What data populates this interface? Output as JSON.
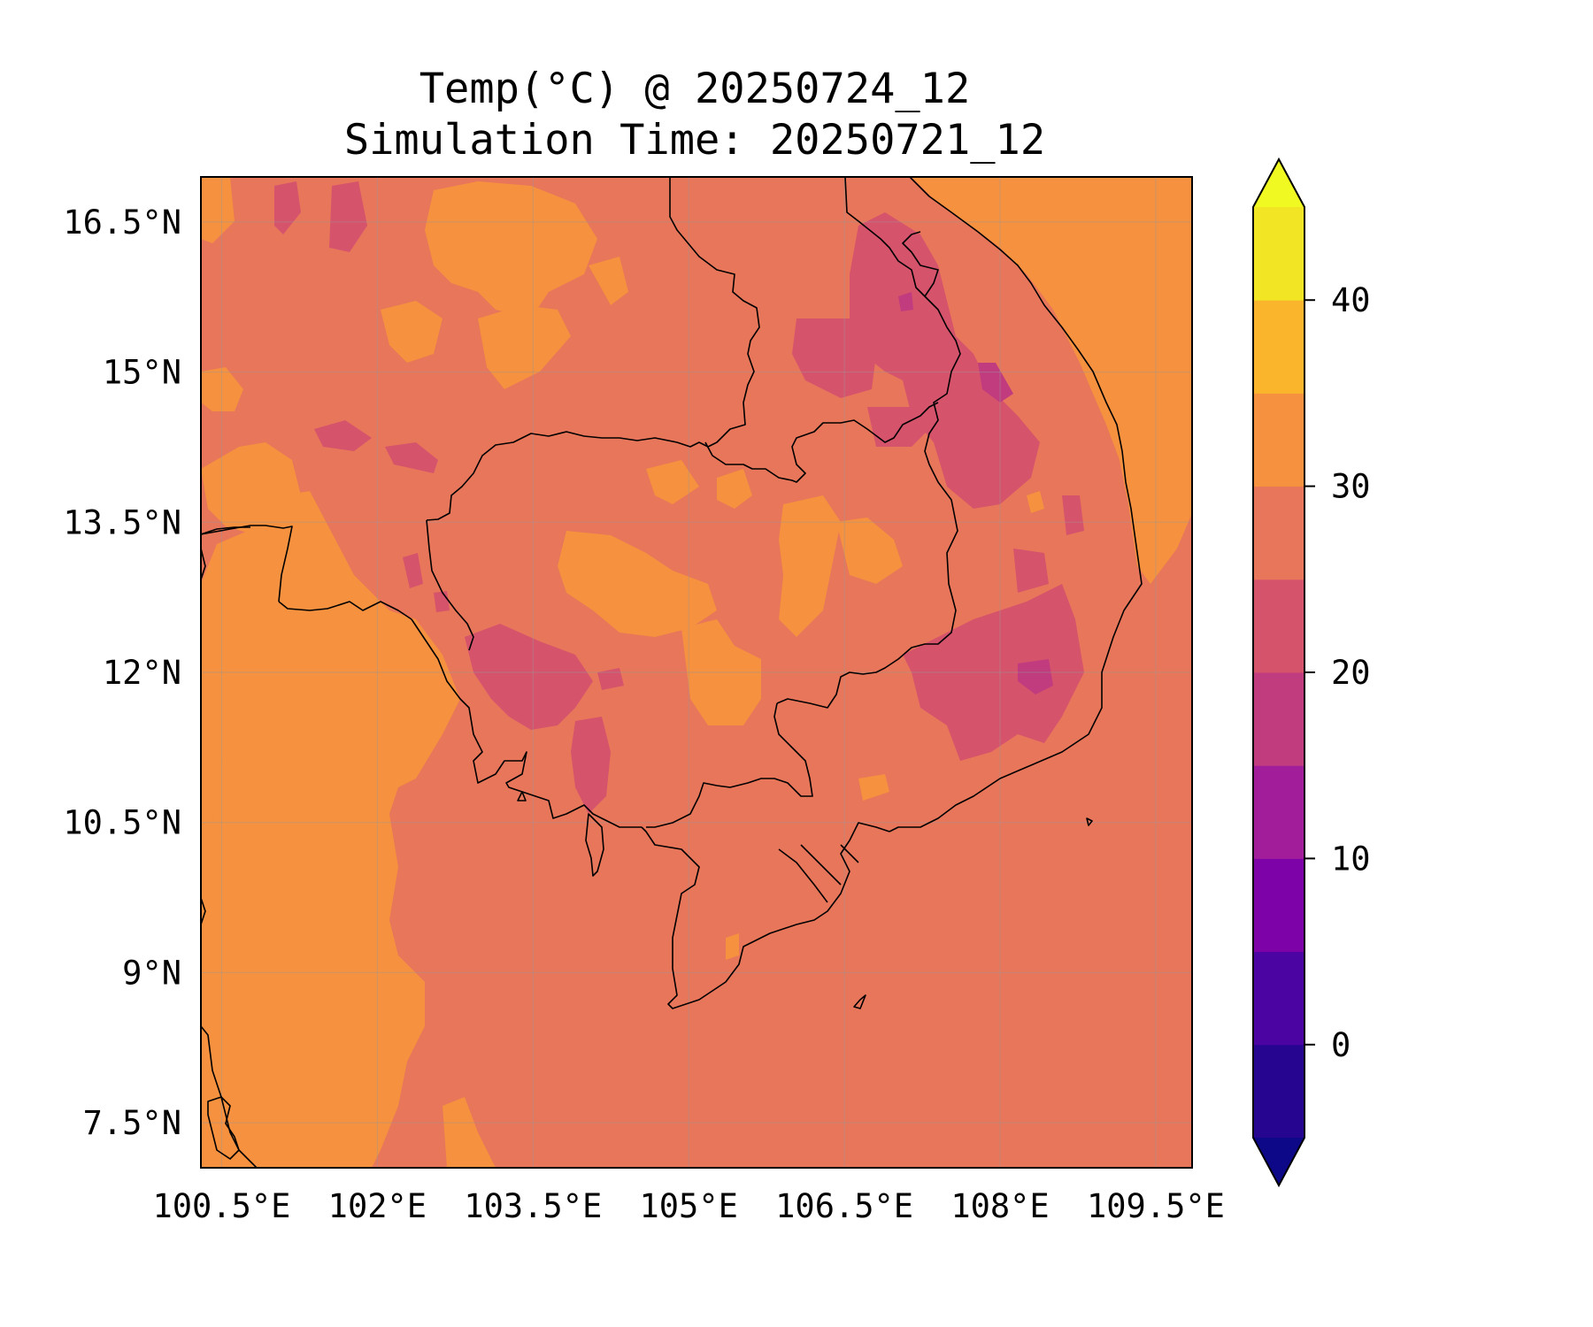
{
  "title": {
    "line1": "Temp(°C) @ 20250724_12",
    "line2": "Simulation Time: 20250721_12"
  },
  "map": {
    "variable": "Temp(°C)",
    "lon_range": [
      100.3,
      109.85
    ],
    "lat_range": [
      7.05,
      16.95
    ],
    "x_ticks": [
      {
        "value": 100.5,
        "label": "100.5°E"
      },
      {
        "value": 102.0,
        "label": "102°E"
      },
      {
        "value": 103.5,
        "label": "103.5°E"
      },
      {
        "value": 105.0,
        "label": "105°E"
      },
      {
        "value": 106.5,
        "label": "106.5°E"
      },
      {
        "value": 108.0,
        "label": "108°E"
      },
      {
        "value": 109.5,
        "label": "109.5°E"
      }
    ],
    "y_ticks": [
      {
        "value": 16.5,
        "label": "16.5°N"
      },
      {
        "value": 15.0,
        "label": "15°N"
      },
      {
        "value": 13.5,
        "label": "13.5°N"
      },
      {
        "value": 12.0,
        "label": "12°N"
      },
      {
        "value": 10.5,
        "label": "10.5°N"
      },
      {
        "value": 9.0,
        "label": "9°N"
      },
      {
        "value": 7.5,
        "label": "7.5°N"
      }
    ],
    "gridlines": true,
    "colors": {
      "band_25_30": "#e8765a",
      "band_30_35": "#f5913f",
      "band_20_25": "#d6536c",
      "band_15_20": "#c13b7f",
      "coast": "#000000"
    }
  },
  "colorbar": {
    "colormap": "plasma",
    "extend": "both",
    "levels": [
      -5,
      0,
      5,
      10,
      15,
      20,
      25,
      30,
      35,
      40,
      45
    ],
    "band_colors": [
      "#260591",
      "#4b03a1",
      "#7d03a8",
      "#a21d9a",
      "#c13b7f",
      "#d6536c",
      "#e8765a",
      "#f5913f",
      "#fbb52c",
      "#f1e524"
    ],
    "under_color": "#0d0887",
    "over_color": "#f0f921",
    "ticks": [
      {
        "value": 0,
        "label": "0"
      },
      {
        "value": 10,
        "label": "10"
      },
      {
        "value": 20,
        "label": "20"
      },
      {
        "value": 30,
        "label": "30"
      },
      {
        "value": 40,
        "label": "40"
      }
    ]
  }
}
